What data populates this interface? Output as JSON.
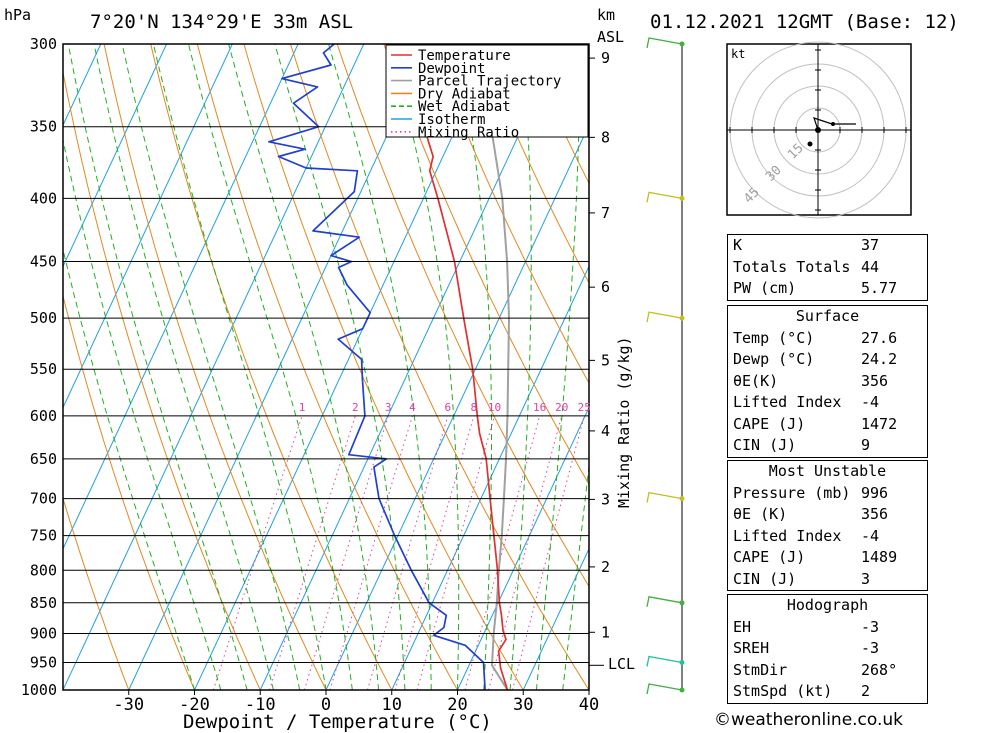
{
  "header": {
    "location": "7°20'N 134°29'E 33m ASL",
    "datetime": "01.12.2021 12GMT (Base: 12)",
    "hpa_label": "hPa",
    "km_label": "km",
    "asl_label": "ASL"
  },
  "chart_data": {
    "type": "line",
    "title": "7°20'N 134°29'E 33m ASL",
    "xlabel": "Dewpoint / Temperature (°C)",
    "ylabel": "hPa",
    "right_label": "Mixing Ratio (g/kg)",
    "xlim": [
      -40,
      40
    ],
    "ylim": [
      1000,
      300
    ],
    "skew_deg_per_logp": 38,
    "y_scale": "log",
    "x_ticks": [
      -30,
      -20,
      -10,
      0,
      10,
      20,
      30,
      40
    ],
    "pressure_levels": [
      300,
      350,
      400,
      450,
      500,
      550,
      600,
      650,
      700,
      750,
      800,
      850,
      900,
      950,
      1000
    ],
    "km_ticks": [
      {
        "km": 1,
        "p": 898
      },
      {
        "km": 2,
        "p": 795
      },
      {
        "km": 3,
        "p": 701
      },
      {
        "km": 4,
        "p": 617
      },
      {
        "km": 5,
        "p": 541
      },
      {
        "km": 6,
        "p": 472
      },
      {
        "km": 7,
        "p": 411
      },
      {
        "km": 8,
        "p": 357
      },
      {
        "km": 9,
        "p": 308
      }
    ],
    "lcl": {
      "label": "LCL",
      "p": 955
    },
    "mixing_ratio_labels": [
      "1",
      "2",
      "3",
      "4",
      "6",
      "8",
      "10",
      "16",
      "20",
      "25"
    ],
    "mixing_ratio_values": [
      1,
      2,
      3,
      4,
      6,
      8,
      10,
      16,
      20,
      25
    ],
    "legend": {
      "items": [
        {
          "label": "Temperature",
          "color": "#e03030",
          "style": "solid"
        },
        {
          "label": "Dewpoint",
          "color": "#2040d0",
          "style": "solid"
        },
        {
          "label": "Parcel Trajectory",
          "color": "#a0a0a0",
          "style": "solid"
        },
        {
          "label": "Dry Adiabat",
          "color": "#e08a20",
          "style": "solid"
        },
        {
          "label": "Wet Adiabat",
          "color": "#20b020",
          "style": "dashed"
        },
        {
          "label": "Isotherm",
          "color": "#20a0e0",
          "style": "solid"
        },
        {
          "label": "Mixing Ratio",
          "color": "#e040a0",
          "style": "dotted"
        }
      ],
      "position": "top-right"
    },
    "series": [
      {
        "name": "Temperature",
        "color": "#e03030",
        "points": [
          [
            1000,
            27.6
          ],
          [
            960,
            25.0
          ],
          [
            930,
            23.5
          ],
          [
            910,
            23.8
          ],
          [
            895,
            22.7
          ],
          [
            870,
            21.4
          ],
          [
            850,
            20.2
          ],
          [
            800,
            17.6
          ],
          [
            750,
            14.6
          ],
          [
            700,
            11.4
          ],
          [
            650,
            8.0
          ],
          [
            620,
            5.2
          ],
          [
            600,
            3.6
          ],
          [
            550,
            -0.4
          ],
          [
            500,
            -5.4
          ],
          [
            450,
            -10.8
          ],
          [
            400,
            -17.8
          ],
          [
            380,
            -21.0
          ],
          [
            370,
            -21.5
          ],
          [
            350,
            -25.0
          ]
        ]
      },
      {
        "name": "Dewpoint",
        "color": "#2040d0",
        "points": [
          [
            1000,
            24.2
          ],
          [
            950,
            22.0
          ],
          [
            920,
            18.0
          ],
          [
            903,
            12.5
          ],
          [
            890,
            13.5
          ],
          [
            870,
            13.0
          ],
          [
            850,
            9.5
          ],
          [
            800,
            4.5
          ],
          [
            750,
            -0.5
          ],
          [
            700,
            -5.5
          ],
          [
            660,
            -8.5
          ],
          [
            650,
            -7.2
          ],
          [
            645,
            -13.2
          ],
          [
            600,
            -13.5
          ],
          [
            560,
            -16.5
          ],
          [
            540,
            -18.0
          ],
          [
            520,
            -23.0
          ],
          [
            510,
            -20.0
          ],
          [
            495,
            -20.0
          ],
          [
            470,
            -25.5
          ],
          [
            455,
            -28.0
          ],
          [
            450,
            -26.5
          ],
          [
            445,
            -30.0
          ],
          [
            430,
            -27.0
          ],
          [
            425,
            -34.5
          ],
          [
            395,
            -31.0
          ],
          [
            380,
            -32.0
          ],
          [
            378,
            -40.0
          ],
          [
            370,
            -45.0
          ],
          [
            365,
            -41.5
          ],
          [
            360,
            -47.5
          ],
          [
            350,
            -41.0
          ],
          [
            335,
            -46.5
          ],
          [
            325,
            -44.0
          ],
          [
            320,
            -50.0
          ],
          [
            312,
            -43.5
          ],
          [
            305,
            -45.5
          ],
          [
            300,
            -44.5
          ]
        ]
      },
      {
        "name": "Parcel Trajectory",
        "color": "#a0a0a0",
        "points": [
          [
            1000,
            27.6
          ],
          [
            955,
            23.5
          ],
          [
            900,
            21.5
          ],
          [
            850,
            19.8
          ],
          [
            800,
            17.8
          ],
          [
            750,
            15.8
          ],
          [
            700,
            13.5
          ],
          [
            650,
            11.0
          ],
          [
            600,
            8.2
          ],
          [
            550,
            5.0
          ],
          [
            500,
            1.5
          ],
          [
            450,
            -2.8
          ],
          [
            400,
            -8.0
          ],
          [
            350,
            -14.8
          ]
        ]
      }
    ],
    "wind_barbs": [
      {
        "p": 1000,
        "color": "#40b040"
      },
      {
        "p": 950,
        "color": "#20c0a0"
      },
      {
        "p": 850,
        "color": "#40b040"
      },
      {
        "p": 700,
        "color": "#c0c020"
      },
      {
        "p": 500,
        "color": "#c0c020"
      },
      {
        "p": 400,
        "color": "#c0c020"
      },
      {
        "p": 300,
        "color": "#40b040"
      }
    ]
  },
  "hodograph": {
    "unit_label": "kt",
    "ring_labels": [
      "15",
      "30",
      "45"
    ]
  },
  "indices": {
    "rows": [
      {
        "label": "K",
        "value": "37"
      },
      {
        "label": "Totals Totals",
        "value": "44"
      },
      {
        "label": "PW (cm)",
        "value": "5.77"
      }
    ]
  },
  "surface": {
    "title": "Surface",
    "rows": [
      {
        "label": "Temp (°C)",
        "value": "27.6"
      },
      {
        "label": "Dewp (°C)",
        "value": "24.2"
      },
      {
        "label": "θE(K)",
        "value": "356"
      },
      {
        "label": "Lifted Index",
        "value": "-4"
      },
      {
        "label": "CAPE (J)",
        "value": "1472"
      },
      {
        "label": "CIN (J)",
        "value": "9"
      }
    ]
  },
  "most_unstable": {
    "title": "Most Unstable",
    "rows": [
      {
        "label": "Pressure (mb)",
        "value": "996"
      },
      {
        "label": "θE (K)",
        "value": "356"
      },
      {
        "label": "Lifted Index",
        "value": "-4"
      },
      {
        "label": "CAPE (J)",
        "value": "1489"
      },
      {
        "label": "CIN (J)",
        "value": "3"
      }
    ]
  },
  "hodograph_table": {
    "title": "Hodograph",
    "rows": [
      {
        "label": "EH",
        "value": "-3"
      },
      {
        "label": "SREH",
        "value": "-3"
      },
      {
        "label": "StmDir",
        "value": "268°"
      },
      {
        "label": "StmSpd (kt)",
        "value": "2"
      }
    ]
  },
  "footer": "©weatheronline.co.uk"
}
